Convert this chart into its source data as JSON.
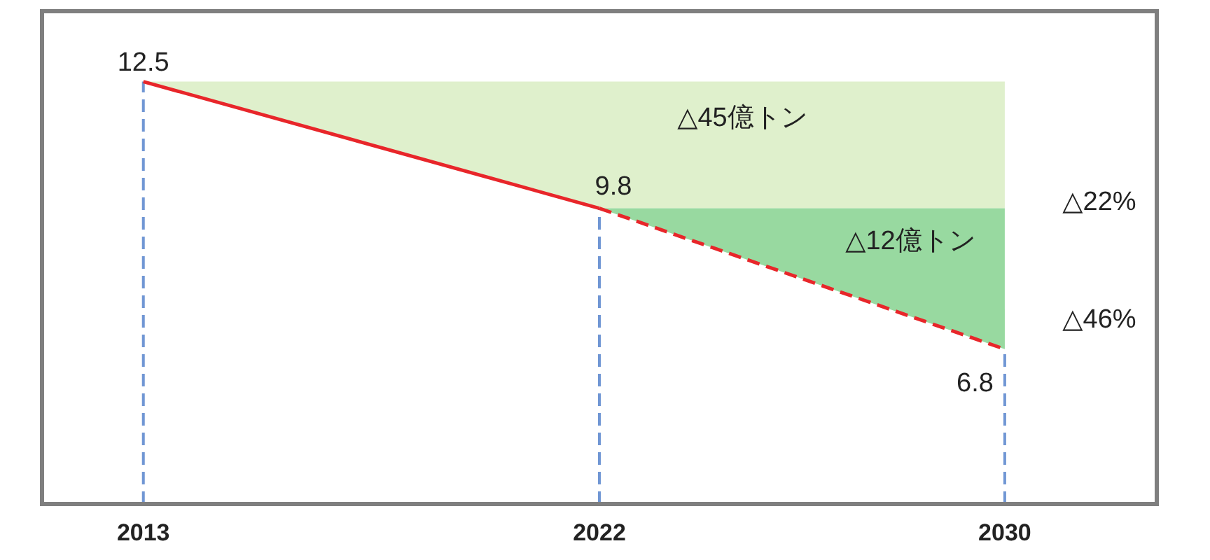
{
  "chart_data": {
    "type": "line",
    "xlim": [
      2011,
      2033
    ],
    "ylim": [
      3.5,
      14
    ],
    "xticks": [
      2013,
      2022,
      2030
    ],
    "tick_labels": "x",
    "grid": false,
    "series": [
      {
        "color": "#e8262a",
        "line_style": "solid",
        "x": [
          2013,
          2022
        ],
        "values": [
          12.5,
          9.8
        ],
        "value_labels": [
          "12.5",
          "9.8"
        ]
      },
      {
        "color": "#e8262a",
        "line_style": "dashed",
        "x": [
          2022,
          2030
        ],
        "values": [
          9.8,
          6.8
        ],
        "value_labels": [
          null,
          "6.8"
        ]
      }
    ],
    "ref_lines": [
      {
        "axis": "x",
        "value": 2013,
        "color": "#7096d4",
        "line_style": "dashed"
      },
      {
        "axis": "x",
        "value": 2022,
        "color": "#7096d4",
        "line_style": "dashed"
      },
      {
        "axis": "x",
        "value": 2030,
        "color": "#7096d4",
        "line_style": "dashed"
      }
    ],
    "annotations": [
      "△45億トン",
      "△12億トン",
      "△22%",
      "△46%"
    ]
  }
}
